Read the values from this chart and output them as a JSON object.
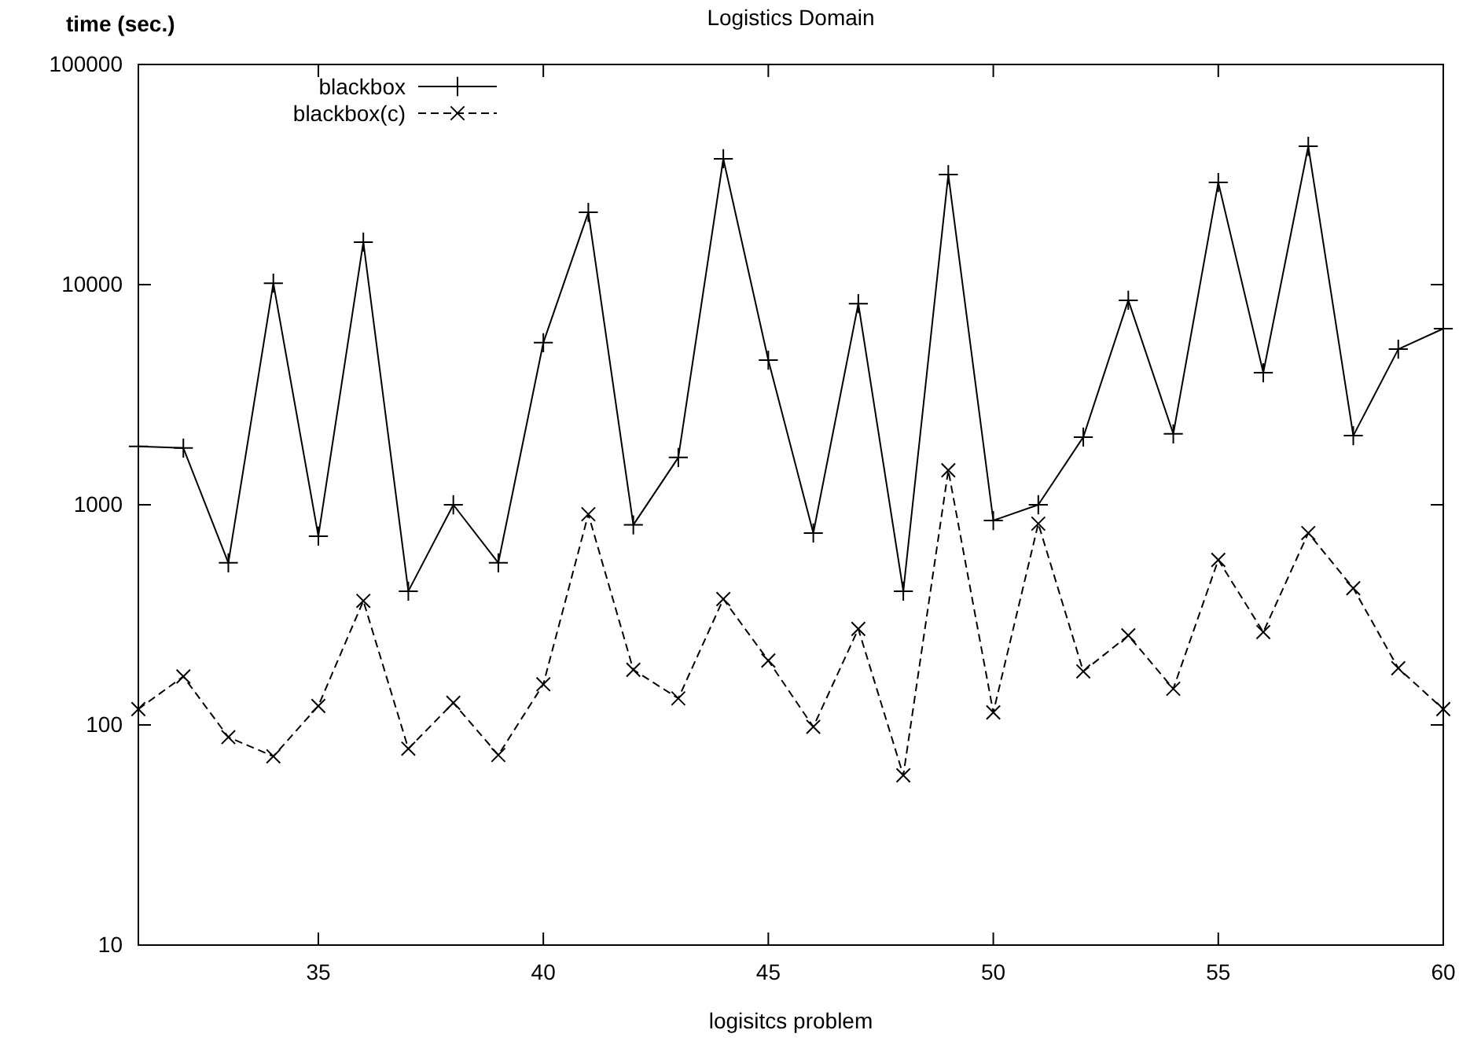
{
  "chart_data": {
    "type": "line",
    "title": "Logistics Domain",
    "xlabel": "logisitcs problem",
    "ylabel": "time (sec.)",
    "log": "y",
    "grid": false,
    "legend": "top left",
    "x": [
      31,
      32,
      33,
      34,
      35,
      36,
      37,
      38,
      39,
      40,
      41,
      42,
      43,
      44,
      45,
      46,
      47,
      48,
      49,
      50,
      51,
      52,
      53,
      54,
      55,
      56,
      57,
      58,
      59,
      60
    ],
    "xlim": [
      31,
      60
    ],
    "xticks": [
      35,
      40,
      45,
      50,
      55,
      60
    ],
    "ylim": [
      10,
      100000
    ],
    "yticks": [
      10,
      100,
      1000,
      10000,
      100000
    ],
    "series": [
      {
        "name": "blackbox",
        "color": "#000000",
        "marker": "plus",
        "line_style": "solid",
        "values": [
          1840,
          1810,
          545,
          10150,
          720,
          15600,
          405,
          1000,
          545,
          5450,
          21300,
          810,
          1640,
          37300,
          4540,
          744,
          8200,
          405,
          31600,
          848,
          1000,
          2030,
          8490,
          2100,
          29100,
          3980,
          42500,
          2060,
          5090,
          6310
        ]
      },
      {
        "name": "blackbox(c)",
        "color": "#000000",
        "marker": "cross",
        "line_style": "dashed",
        "values": [
          118,
          166,
          88,
          72,
          122,
          366,
          78,
          126,
          73,
          153,
          906,
          178,
          132,
          373,
          196,
          98,
          273,
          59,
          1435,
          114,
          821,
          175,
          255,
          146,
          562,
          264,
          744,
          418,
          181,
          118
        ]
      }
    ]
  }
}
